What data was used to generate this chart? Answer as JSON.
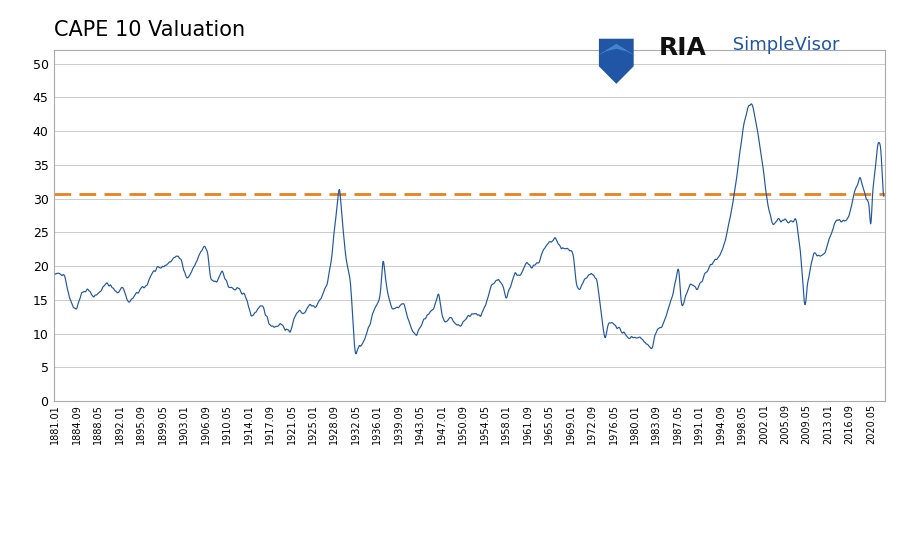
{
  "title": "CAPE 10 Valuation",
  "dashed_line_value": 30.7,
  "dashed_line_color": "#E8821C",
  "line_color": "#2156A6",
  "background_color": "#FFFFFF",
  "plot_bg_color": "#FFFFFF",
  "ylim": [
    0,
    52
  ],
  "yticks": [
    0,
    5,
    10,
    15,
    20,
    25,
    30,
    35,
    40,
    45,
    50
  ],
  "grid_color": "#CCCCCC",
  "xtick_labels": [
    "1881.01",
    "1884.09",
    "1888.05",
    "1892.01",
    "1895.09",
    "1899.05",
    "1903.01",
    "1906.09",
    "1910.05",
    "1914.01",
    "1917.09",
    "1921.05",
    "1925.01",
    "1928.09",
    "1932.05",
    "1936.01",
    "1939.09",
    "1943.05",
    "1947.01",
    "1950.09",
    "1954.05",
    "1958.01",
    "1961.09",
    "1965.05",
    "1969.01",
    "1972.09",
    "1976.05",
    "1980.01",
    "1983.09",
    "1987.05",
    "1991.01",
    "1994.09",
    "1998.05",
    "2002.01",
    "2005.09",
    "2009.05",
    "2013.01",
    "2016.09",
    "2020.05"
  ],
  "logo_ria_color": "#111111",
  "logo_simple_color": "#2156A6",
  "logo_ria_fontsize": 18,
  "logo_simple_fontsize": 13
}
